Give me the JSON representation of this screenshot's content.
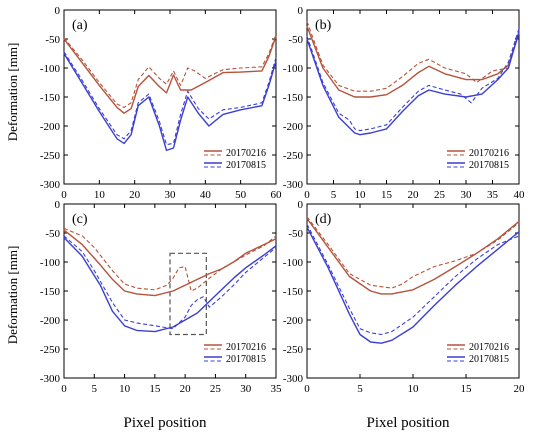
{
  "y_axis_label": "Deformation [mm]",
  "x_axis_label": "Pixel position",
  "colors": {
    "red": "#b5533b",
    "blue": "#3b3fd4",
    "axis": "#000000",
    "box": "#555555"
  },
  "chart_data": [
    {
      "type": "line",
      "panel_label": "(a)",
      "xlabel": "",
      "ylabel": "Deformation [mm]",
      "xlim": [
        0,
        60
      ],
      "ylim": [
        -300,
        0
      ],
      "xticks": [
        0,
        10,
        20,
        30,
        40,
        50,
        60
      ],
      "yticks": [
        0,
        -50,
        -100,
        -150,
        -200,
        -250,
        -300
      ],
      "grid": false,
      "legend_position": "lower-right",
      "series": [
        {
          "name": "20170216",
          "color": "red",
          "dash": false,
          "x": [
            0,
            5,
            10,
            15,
            17,
            19,
            21,
            24,
            27,
            29,
            31,
            33,
            36,
            40,
            45,
            50,
            56,
            58,
            60
          ],
          "y": [
            -50,
            -90,
            -130,
            -168,
            -178,
            -170,
            -132,
            -113,
            -132,
            -143,
            -112,
            -138,
            -138,
            -125,
            -108,
            -107,
            -105,
            -80,
            -45
          ]
        },
        {
          "name": "20170216",
          "color": "red",
          "dash": true,
          "x": [
            0,
            5,
            10,
            15,
            17,
            19,
            21,
            24,
            27,
            29,
            31,
            33,
            35,
            37,
            40,
            45,
            50,
            56,
            58,
            60
          ],
          "y": [
            -48,
            -85,
            -125,
            -162,
            -168,
            -160,
            -120,
            -98,
            -118,
            -128,
            -105,
            -130,
            -100,
            -105,
            -118,
            -103,
            -100,
            -98,
            -75,
            -42
          ]
        },
        {
          "name": "20170815",
          "color": "blue",
          "dash": false,
          "x": [
            0,
            5,
            10,
            15,
            17,
            19,
            21,
            24,
            27,
            29,
            31,
            33,
            35,
            38,
            41,
            45,
            50,
            56,
            58,
            60
          ],
          "y": [
            -75,
            -125,
            -175,
            -222,
            -230,
            -215,
            -165,
            -150,
            -200,
            -242,
            -238,
            -190,
            -150,
            -178,
            -200,
            -180,
            -172,
            -165,
            -130,
            -88
          ]
        },
        {
          "name": "20170815",
          "color": "blue",
          "dash": true,
          "x": [
            0,
            5,
            10,
            15,
            17,
            19,
            21,
            24,
            27,
            29,
            31,
            33,
            35,
            38,
            41,
            45,
            50,
            56,
            58,
            60
          ],
          "y": [
            -72,
            -120,
            -170,
            -215,
            -222,
            -208,
            -160,
            -145,
            -192,
            -232,
            -230,
            -180,
            -140,
            -170,
            -188,
            -172,
            -168,
            -160,
            -125,
            -82
          ]
        }
      ]
    },
    {
      "type": "line",
      "panel_label": "(b)",
      "xlabel": "",
      "ylabel": "",
      "xlim": [
        0,
        40
      ],
      "ylim": [
        -300,
        0
      ],
      "xticks": [
        0,
        5,
        10,
        15,
        20,
        25,
        30,
        35,
        40
      ],
      "yticks": [
        0,
        -50,
        -100,
        -150,
        -200,
        -250,
        -300
      ],
      "grid": false,
      "legend_position": "lower-right",
      "series": [
        {
          "name": "20170216",
          "color": "red",
          "dash": false,
          "x": [
            0,
            3,
            6,
            9,
            12,
            15,
            18,
            21,
            23,
            26,
            30,
            33,
            36,
            38,
            40
          ],
          "y": [
            -28,
            -100,
            -138,
            -150,
            -150,
            -146,
            -130,
            -108,
            -97,
            -110,
            -120,
            -120,
            -110,
            -95,
            -40
          ]
        },
        {
          "name": "20170216",
          "color": "red",
          "dash": true,
          "x": [
            0,
            3,
            6,
            9,
            12,
            15,
            18,
            21,
            23,
            26,
            30,
            32,
            35,
            38,
            40
          ],
          "y": [
            -20,
            -95,
            -130,
            -140,
            -140,
            -135,
            -115,
            -92,
            -85,
            -100,
            -110,
            -125,
            -105,
            -100,
            -35
          ]
        },
        {
          "name": "20170815",
          "color": "blue",
          "dash": false,
          "x": [
            0,
            3,
            6,
            9,
            10,
            12,
            15,
            18,
            21,
            23,
            26,
            30,
            33,
            36,
            38,
            40
          ],
          "y": [
            -50,
            -130,
            -185,
            -212,
            -215,
            -212,
            -205,
            -175,
            -148,
            -138,
            -145,
            -150,
            -145,
            -120,
            -100,
            -38
          ]
        },
        {
          "name": "20170815",
          "color": "blue",
          "dash": true,
          "x": [
            0,
            3,
            6,
            8,
            9,
            10,
            12,
            15,
            18,
            21,
            23,
            26,
            29,
            31,
            33,
            36,
            38,
            40
          ],
          "y": [
            -45,
            -125,
            -178,
            -190,
            -205,
            -208,
            -205,
            -198,
            -168,
            -140,
            -130,
            -138,
            -145,
            -160,
            -135,
            -118,
            -90,
            -32
          ]
        }
      ]
    },
    {
      "type": "line",
      "panel_label": "(c)",
      "xlabel": "Pixel position",
      "ylabel": "Deformation [mm]",
      "xlim": [
        0,
        35
      ],
      "ylim": [
        -300,
        0
      ],
      "xticks": [
        0,
        5,
        10,
        15,
        20,
        25,
        30,
        35
      ],
      "yticks": [
        0,
        -50,
        -100,
        -150,
        -200,
        -250,
        -300
      ],
      "grid": false,
      "legend_position": "lower-right",
      "highlight_box": {
        "x": [
          17.5,
          23.5
        ],
        "y": [
          -225,
          -85
        ]
      },
      "series": [
        {
          "name": "20170216",
          "color": "red",
          "dash": false,
          "x": [
            0,
            3,
            6,
            8,
            10,
            12,
            15,
            18,
            20,
            22,
            24,
            26,
            28,
            30,
            33,
            35
          ],
          "y": [
            -45,
            -70,
            -105,
            -130,
            -150,
            -155,
            -158,
            -150,
            -140,
            -130,
            -120,
            -112,
            -100,
            -85,
            -70,
            -60
          ]
        },
        {
          "name": "20170216",
          "color": "red",
          "dash": true,
          "x": [
            0,
            3,
            5,
            8,
            10,
            12,
            15,
            17,
            18,
            19,
            20,
            21,
            22,
            24,
            26,
            28,
            30,
            33,
            35
          ],
          "y": [
            -42,
            -55,
            -75,
            -115,
            -138,
            -145,
            -148,
            -140,
            -128,
            -110,
            -108,
            -150,
            -145,
            -128,
            -112,
            -100,
            -88,
            -72,
            -55
          ]
        },
        {
          "name": "20170815",
          "color": "blue",
          "dash": false,
          "x": [
            0,
            3,
            6,
            8,
            10,
            12,
            15,
            18,
            20,
            22,
            24,
            26,
            28,
            30,
            33,
            35
          ],
          "y": [
            -58,
            -90,
            -140,
            -185,
            -210,
            -218,
            -220,
            -212,
            -200,
            -188,
            -168,
            -148,
            -128,
            -110,
            -88,
            -72
          ]
        },
        {
          "name": "20170815",
          "color": "blue",
          "dash": true,
          "x": [
            0,
            3,
            5,
            8,
            10,
            12,
            15,
            18,
            20,
            21,
            22,
            23,
            24,
            26,
            28,
            30,
            33,
            35
          ],
          "y": [
            -55,
            -82,
            -115,
            -170,
            -200,
            -205,
            -210,
            -215,
            -195,
            -175,
            -165,
            -160,
            -178,
            -160,
            -140,
            -118,
            -92,
            -75
          ]
        }
      ]
    },
    {
      "type": "line",
      "panel_label": "(d)",
      "xlabel": "Pixel position",
      "ylabel": "",
      "xlim": [
        0,
        20
      ],
      "ylim": [
        -300,
        0
      ],
      "xticks": [
        0,
        5,
        10,
        15,
        20
      ],
      "yticks": [
        0,
        -50,
        -100,
        -150,
        -200,
        -250,
        -300
      ],
      "grid": false,
      "legend_position": "lower-right",
      "series": [
        {
          "name": "20170216",
          "color": "red",
          "dash": false,
          "x": [
            0,
            2,
            4,
            6,
            7,
            8,
            10,
            12,
            14,
            16,
            18,
            20
          ],
          "y": [
            -25,
            -75,
            -125,
            -150,
            -155,
            -155,
            -148,
            -130,
            -108,
            -85,
            -60,
            -30
          ]
        },
        {
          "name": "20170216",
          "color": "red",
          "dash": true,
          "x": [
            0,
            2,
            4,
            6,
            8,
            9,
            10,
            12,
            14,
            16,
            18,
            20
          ],
          "y": [
            -22,
            -70,
            -120,
            -140,
            -145,
            -138,
            -125,
            -108,
            -98,
            -85,
            -62,
            -32
          ]
        },
        {
          "name": "20170815",
          "color": "blue",
          "dash": false,
          "x": [
            0,
            2,
            4,
            5,
            6,
            7,
            8,
            10,
            12,
            14,
            16,
            18,
            20
          ],
          "y": [
            -40,
            -110,
            -190,
            -225,
            -238,
            -240,
            -235,
            -212,
            -175,
            -140,
            -108,
            -78,
            -48
          ]
        },
        {
          "name": "20170815",
          "color": "blue",
          "dash": true,
          "x": [
            0,
            2,
            4,
            5,
            6,
            7,
            8,
            10,
            12,
            14,
            16,
            18,
            20
          ],
          "y": [
            -35,
            -105,
            -180,
            -215,
            -222,
            -225,
            -220,
            -195,
            -160,
            -125,
            -95,
            -70,
            -55
          ]
        }
      ]
    }
  ]
}
